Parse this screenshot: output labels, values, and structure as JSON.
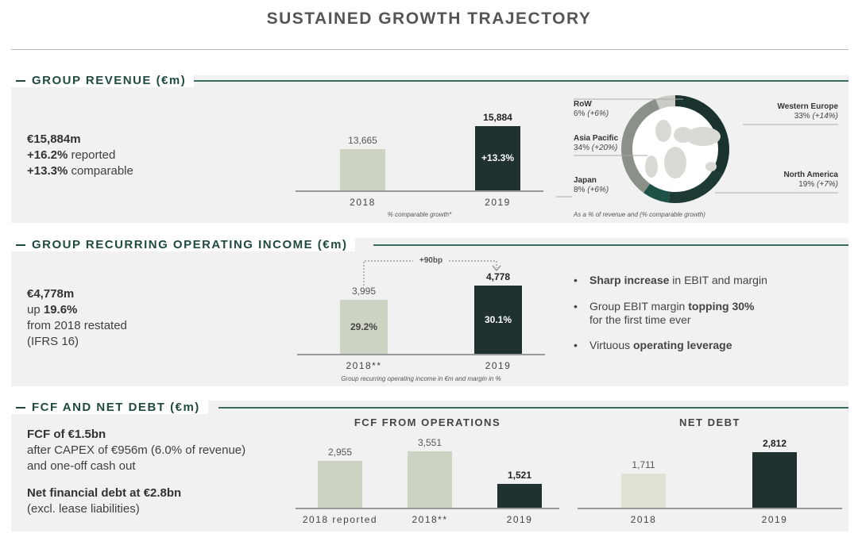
{
  "title": "SUSTAINED GROWTH TRAJECTORY",
  "sections": {
    "revenue": {
      "heading": "GROUP REVENUE (€m)",
      "kpi": [
        "€15,884m",
        "+16.2%",
        " reported",
        "+13.3%",
        " comparable"
      ],
      "note": "% comparable growth*",
      "geo_note": "As a % of revenue and (% comparable growth)"
    },
    "income": {
      "heading": "GROUP RECURRING OPERATING INCOME (€m)",
      "kpi": [
        "€4,778m",
        "up ",
        "19.6%",
        "from 2018 restated",
        "(IFRS 16)"
      ],
      "note": "Group recurring operating income in €m and margin in %",
      "delta": "+90bp",
      "bullets": [
        [
          "Sharp increase",
          " in EBIT and margin"
        ],
        [
          "Group EBIT margin ",
          "topping 30%",
          "for the first time ever"
        ],
        [
          "Virtuous ",
          "operating leverage"
        ]
      ]
    },
    "fcf": {
      "heading": "FCF AND NET DEBT (€m)",
      "kpi": [
        "FCF of €1.5bn",
        "after CAPEX of €956m (6.0% of revenue)",
        "and one-off cash out",
        "Net financial debt at €2.8bn",
        "(excl. lease liabilities)"
      ]
    }
  },
  "colors": {
    "light": "#ccd3c2",
    "dark": "#1f3230",
    "pale": "#e0e2d6"
  },
  "chart_data": [
    {
      "id": "revenue",
      "type": "bar",
      "categories": [
        "2018",
        "2019"
      ],
      "values": [
        13665,
        15884
      ],
      "labels": [
        "13,665",
        "15,884"
      ],
      "inner": [
        "",
        "+13.3%"
      ],
      "ylim": [
        9700,
        17300
      ]
    },
    {
      "id": "income",
      "type": "bar",
      "categories": [
        "2018**",
        "2019"
      ],
      "values": [
        3995,
        4778
      ],
      "labels": [
        "3,995",
        "4,778"
      ],
      "inner": [
        "29.2%",
        "30.1%"
      ],
      "ylim": [
        1040,
        5400
      ]
    },
    {
      "id": "fcf",
      "type": "bar",
      "title": "FCF FROM OPERATIONS",
      "categories": [
        "2018 reported",
        "2018**",
        "2019"
      ],
      "values": [
        2955,
        3551,
        1521
      ],
      "labels": [
        "2,955",
        "3,551",
        "1,521"
      ],
      "ylim": [
        0,
        5000
      ]
    },
    {
      "id": "debt",
      "type": "bar",
      "title": "NET DEBT",
      "categories": [
        "2018",
        "2019"
      ],
      "values": [
        1711,
        2812
      ],
      "labels": [
        "1,711",
        "2,812"
      ],
      "ylim": [
        0,
        4000
      ]
    },
    {
      "id": "geo",
      "type": "pie",
      "slices": [
        {
          "name": "Western Europe",
          "value": 33,
          "growth": "(+14%)",
          "color": "#1b332e"
        },
        {
          "name": "North America",
          "value": 19,
          "growth": "(+7%)",
          "color": "#1d3a34"
        },
        {
          "name": "Japan",
          "value": 8,
          "growth": "(+6%)",
          "color": "#1f5246"
        },
        {
          "name": "Asia Pacific",
          "value": 34,
          "growth": "(+20%)",
          "color": "#8b908a"
        },
        {
          "name": "RoW",
          "value": 6,
          "growth": "(+6%)",
          "color": "#c9cbc4"
        }
      ]
    }
  ]
}
